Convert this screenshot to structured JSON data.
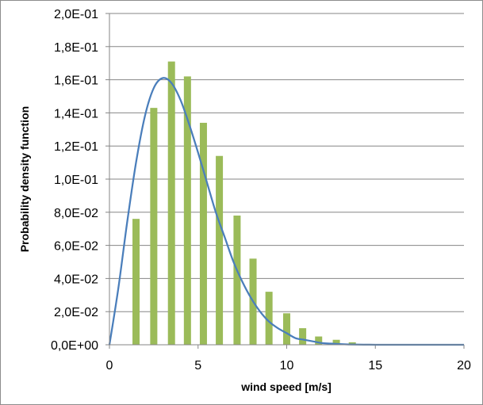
{
  "chart_data": {
    "type": "bar",
    "xlabel": "wind speed [m/s]",
    "ylabel": "Probability density function",
    "xlim": [
      0,
      20
    ],
    "ylim": [
      0,
      0.2
    ],
    "x_ticks": [
      "0",
      "5",
      "10",
      "15",
      "20"
    ],
    "x_tick_values": [
      0,
      5,
      10,
      15,
      20
    ],
    "y_ticks": [
      "0,0E+00",
      "2,0E-02",
      "4,0E-02",
      "6,0E-02",
      "8,0E-02",
      "1,0E-01",
      "1,2E-01",
      "1,4E-01",
      "1,6E-01",
      "1,8E-01",
      "2,0E-01"
    ],
    "y_tick_values": [
      0,
      0.02,
      0.04,
      0.06,
      0.08,
      0.1,
      0.12,
      0.14,
      0.16,
      0.18,
      0.2
    ],
    "grid": true,
    "series": [
      {
        "type": "bar",
        "color": "#9bbb59",
        "x": [
          1.5,
          2.5,
          3.5,
          4.4,
          5.3,
          6.2,
          7.2,
          8.1,
          9.0,
          10.0,
          10.9,
          11.8,
          12.8,
          13.7,
          14.6
        ],
        "values": [
          0.076,
          0.143,
          0.171,
          0.162,
          0.134,
          0.114,
          0.078,
          0.052,
          0.032,
          0.019,
          0.01,
          0.005,
          0.003,
          0.0015,
          0.0005
        ]
      },
      {
        "type": "line",
        "color": "#4a7ebb",
        "x": [
          0,
          0.5,
          1,
          1.5,
          2,
          2.5,
          3,
          3.5,
          4,
          4.5,
          5,
          5.5,
          6,
          6.5,
          7,
          7.5,
          8,
          8.5,
          9,
          9.5,
          10,
          10.5,
          11,
          11.5,
          12,
          12.5,
          13,
          13.5,
          14,
          14.5,
          15,
          16,
          17,
          18,
          19,
          20
        ],
        "values": [
          0,
          0.034,
          0.074,
          0.11,
          0.138,
          0.155,
          0.161,
          0.158,
          0.148,
          0.133,
          0.116,
          0.098,
          0.08,
          0.065,
          0.05,
          0.038,
          0.028,
          0.02,
          0.014,
          0.01,
          0.007,
          0.004,
          0.003,
          0.002,
          0.001,
          0.0007,
          0.0004,
          0.0002,
          0.0001,
          5e-05,
          0,
          0,
          0,
          0,
          0,
          0
        ]
      }
    ]
  }
}
